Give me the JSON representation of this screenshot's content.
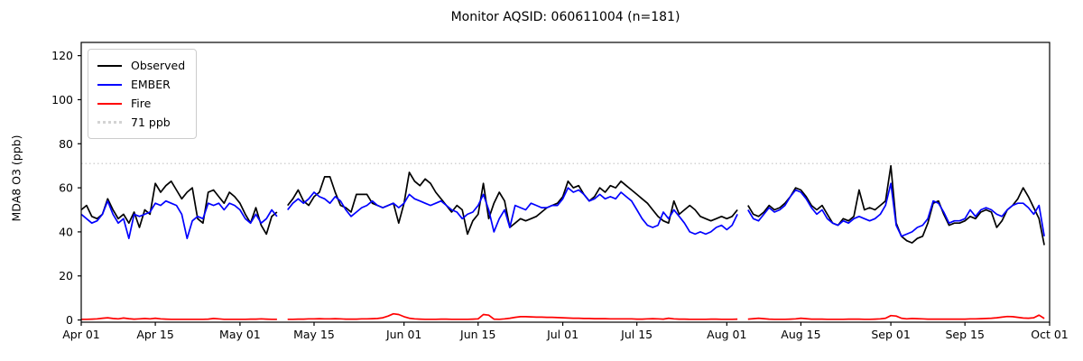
{
  "figure": {
    "title": "Monitor AQSID: 060611004 (n=181)",
    "ylabel": "MDA8 O3 (ppb)"
  },
  "chart_data": {
    "type": "line",
    "title": "Monitor AQSID: 060611004 (n=181)",
    "xlabel": "",
    "ylabel": "MDA8 O3 (ppb)",
    "x_unit": "daily values, day 0 = Apr 01, day 182 = Sep 30",
    "x_domain_days": 183,
    "x_tick_labels": [
      "Apr 01",
      "Apr 15",
      "May 01",
      "May 15",
      "Jun 01",
      "Jun 15",
      "Jul 01",
      "Jul 15",
      "Aug 01",
      "Aug 15",
      "Sep 01",
      "Sep 15",
      "Oct 01"
    ],
    "x_tick_day_offsets": [
      0,
      14,
      30,
      44,
      61,
      75,
      91,
      105,
      122,
      136,
      153,
      167,
      183
    ],
    "y_ticks": [
      0,
      20,
      40,
      60,
      80,
      100,
      120
    ],
    "ylim": [
      -1,
      126
    ],
    "grid": false,
    "legend_position": "upper left",
    "threshold_line": {
      "value": 71,
      "label": "71 ppb",
      "color": "#d3d3d3",
      "style": "dotted"
    },
    "legend": [
      {
        "label": "Observed",
        "color": "#000000",
        "style": "solid"
      },
      {
        "label": "EMBER",
        "color": "#0000ff",
        "style": "solid"
      },
      {
        "label": "Fire",
        "color": "#ff0000",
        "style": "solid"
      },
      {
        "label": "71 ppb",
        "color": "#d3d3d3",
        "style": "dotted"
      }
    ],
    "series": [
      {
        "name": "Observed",
        "color": "#000000",
        "values": [
          50,
          52,
          47,
          46,
          48,
          55,
          50,
          46,
          48,
          44,
          49,
          42,
          50,
          48,
          62,
          58,
          61,
          63,
          59,
          55,
          58,
          60,
          46,
          44,
          58,
          59,
          56,
          53,
          58,
          56,
          53,
          48,
          44,
          51,
          43,
          39,
          47,
          49,
          null,
          52,
          55,
          59,
          54,
          52,
          56,
          58,
          65,
          65,
          58,
          52,
          51,
          49,
          57,
          57,
          57,
          53,
          52,
          51,
          52,
          53,
          44,
          53,
          67,
          63,
          61,
          64,
          62,
          58,
          55,
          52,
          49,
          52,
          50,
          39,
          45,
          48,
          62,
          46,
          53,
          58,
          54,
          42,
          44,
          46,
          45,
          46,
          47,
          49,
          51,
          52,
          53,
          56,
          63,
          60,
          61,
          57,
          54,
          56,
          60,
          58,
          61,
          60,
          63,
          61,
          59,
          57,
          55,
          53,
          50,
          47,
          45,
          44,
          54,
          48,
          50,
          52,
          50,
          47,
          46,
          45,
          46,
          47,
          46,
          47,
          50,
          null,
          52,
          48,
          47,
          49,
          52,
          50,
          51,
          53,
          56,
          60,
          59,
          56,
          52,
          50,
          52,
          48,
          44,
          43,
          46,
          45,
          47,
          59,
          50,
          51,
          50,
          52,
          54,
          70,
          44,
          38,
          36,
          35,
          37,
          38,
          44,
          53,
          54,
          48,
          43,
          44,
          44,
          45,
          47,
          46,
          49,
          50,
          49,
          42,
          45,
          50,
          52,
          55,
          60,
          56,
          51,
          46,
          34
        ]
      },
      {
        "name": "EMBER",
        "color": "#0000ff",
        "values": [
          48,
          46,
          44,
          45,
          48,
          54,
          48,
          44,
          46,
          37,
          48,
          47,
          48,
          49,
          53,
          52,
          54,
          53,
          52,
          48,
          37,
          45,
          47,
          46,
          53,
          52,
          53,
          50,
          53,
          52,
          50,
          46,
          44,
          48,
          44,
          46,
          50,
          47,
          null,
          50,
          53,
          55,
          53,
          55,
          58,
          56,
          55,
          53,
          56,
          54,
          50,
          47,
          49,
          51,
          52,
          54,
          52,
          51,
          52,
          53,
          51,
          53,
          57,
          55,
          54,
          53,
          52,
          53,
          54,
          52,
          50,
          49,
          46,
          48,
          49,
          52,
          57,
          50,
          40,
          46,
          50,
          42,
          52,
          51,
          50,
          53,
          52,
          51,
          51,
          52,
          52,
          55,
          60,
          58,
          59,
          57,
          54,
          55,
          57,
          55,
          56,
          55,
          58,
          56,
          54,
          50,
          46,
          43,
          42,
          43,
          49,
          46,
          50,
          47,
          44,
          40,
          39,
          40,
          39,
          40,
          42,
          43,
          41,
          43,
          48,
          null,
          50,
          46,
          45,
          48,
          51,
          49,
          50,
          52,
          56,
          59,
          58,
          55,
          51,
          48,
          50,
          46,
          44,
          43,
          45,
          44,
          46,
          47,
          46,
          45,
          46,
          48,
          52,
          62,
          43,
          38,
          39,
          40,
          42,
          43,
          46,
          54,
          53,
          49,
          44,
          45,
          45,
          46,
          50,
          47,
          50,
          51,
          50,
          48,
          47,
          50,
          52,
          53,
          53,
          51,
          48,
          52,
          38
        ]
      },
      {
        "name": "Fire",
        "color": "#ff0000",
        "values": [
          0.3,
          0.3,
          0.4,
          0.5,
          0.8,
          1.0,
          0.7,
          0.5,
          0.9,
          0.6,
          0.4,
          0.5,
          0.7,
          0.5,
          0.8,
          0.5,
          0.4,
          0.3,
          0.3,
          0.3,
          0.3,
          0.3,
          0.3,
          0.3,
          0.4,
          0.7,
          0.5,
          0.3,
          0.3,
          0.3,
          0.3,
          0.3,
          0.4,
          0.4,
          0.5,
          0.4,
          0.3,
          0.3,
          null,
          0.3,
          0.3,
          0.4,
          0.4,
          0.5,
          0.5,
          0.6,
          0.5,
          0.5,
          0.6,
          0.5,
          0.4,
          0.4,
          0.4,
          0.5,
          0.5,
          0.6,
          0.7,
          1.0,
          1.8,
          2.8,
          2.5,
          1.5,
          0.8,
          0.5,
          0.4,
          0.3,
          0.3,
          0.3,
          0.4,
          0.4,
          0.3,
          0.3,
          0.3,
          0.3,
          0.4,
          0.5,
          2.5,
          2.2,
          0.4,
          0.3,
          0.5,
          0.8,
          1.2,
          1.5,
          1.5,
          1.4,
          1.3,
          1.3,
          1.2,
          1.2,
          1.1,
          1.0,
          0.9,
          0.8,
          0.8,
          0.7,
          0.7,
          0.6,
          0.6,
          0.6,
          0.5,
          0.5,
          0.5,
          0.5,
          0.5,
          0.4,
          0.4,
          0.5,
          0.6,
          0.5,
          0.4,
          0.8,
          0.5,
          0.4,
          0.4,
          0.3,
          0.3,
          0.3,
          0.3,
          0.4,
          0.4,
          0.3,
          0.3,
          0.3,
          0.4,
          null,
          0.4,
          0.6,
          0.8,
          0.6,
          0.4,
          0.3,
          0.3,
          0.3,
          0.4,
          0.5,
          0.8,
          0.6,
          0.4,
          0.4,
          0.4,
          0.3,
          0.3,
          0.3,
          0.3,
          0.4,
          0.4,
          0.4,
          0.3,
          0.3,
          0.4,
          0.5,
          0.8,
          2.0,
          1.8,
          0.8,
          0.5,
          0.7,
          0.6,
          0.5,
          0.4,
          0.4,
          0.4,
          0.4,
          0.4,
          0.4,
          0.4,
          0.4,
          0.5,
          0.5,
          0.6,
          0.7,
          0.8,
          1.0,
          1.3,
          1.6,
          1.5,
          1.2,
          0.9,
          0.8,
          1.0,
          2.2,
          0.7
        ]
      }
    ]
  }
}
